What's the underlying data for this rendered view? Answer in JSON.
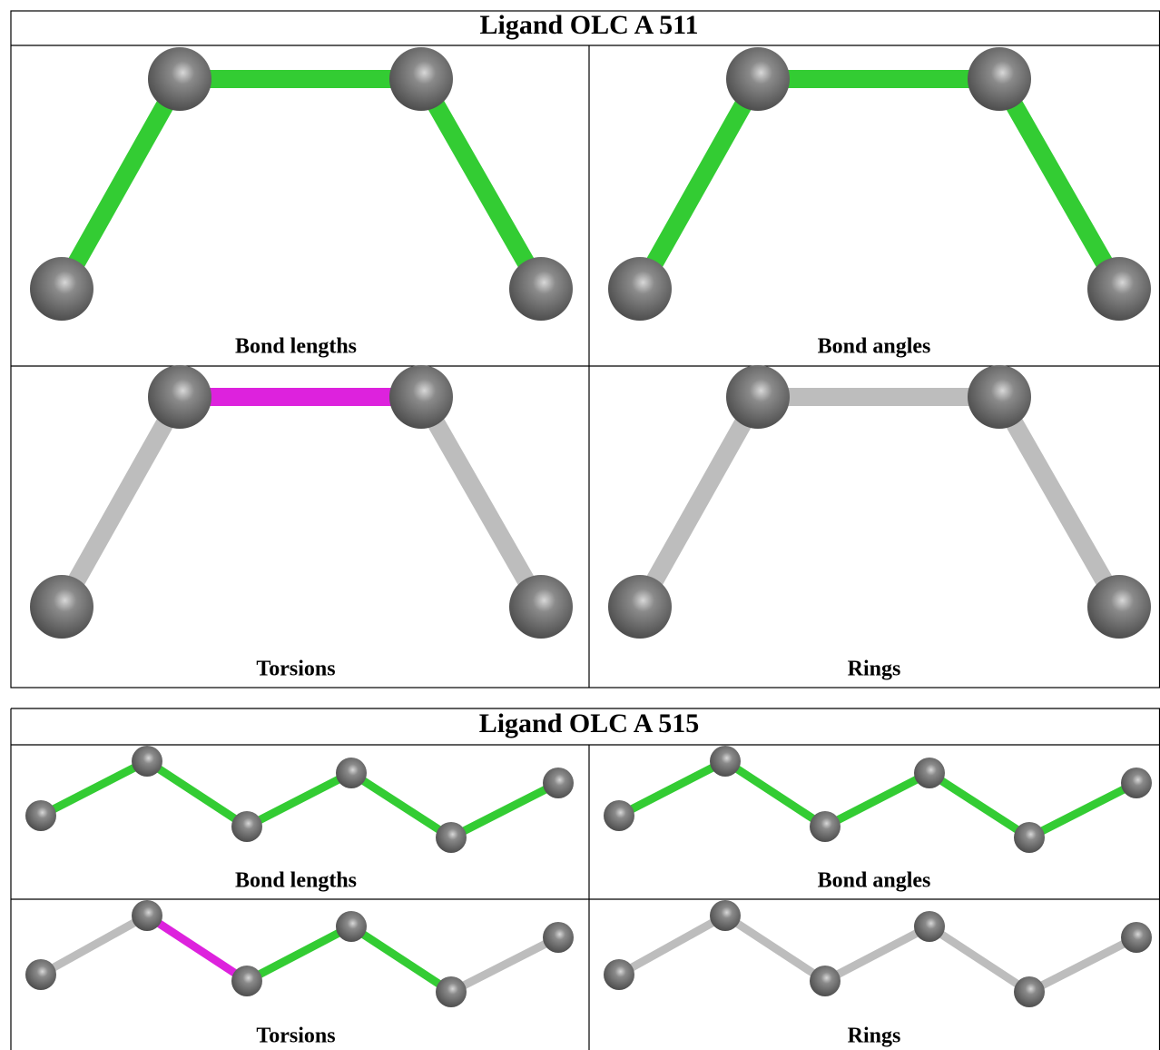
{
  "tables": [
    {
      "title": "Ligand OLC A 511",
      "panels": [
        {
          "caption": "Bond lengths"
        },
        {
          "caption": "Bond angles"
        },
        {
          "caption": "Torsions"
        },
        {
          "caption": "Rings"
        }
      ]
    },
    {
      "title": "Ligand OLC A 515",
      "panels": [
        {
          "caption": "Bond lengths"
        },
        {
          "caption": "Bond angles"
        },
        {
          "caption": "Torsions"
        },
        {
          "caption": "Rings"
        }
      ]
    }
  ]
}
